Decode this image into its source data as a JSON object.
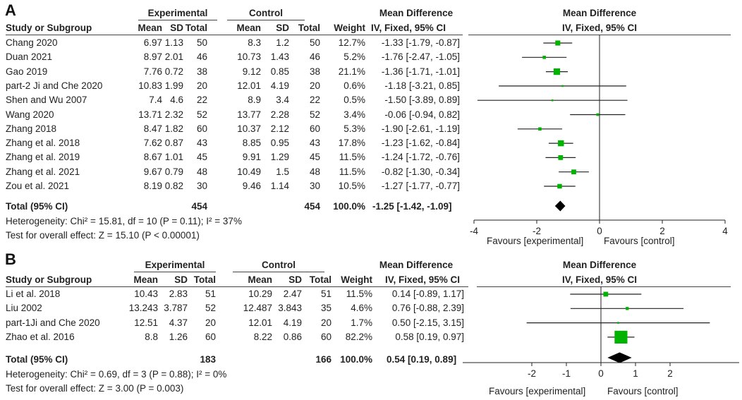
{
  "chart_data": [
    {
      "type": "forest",
      "panel": "A",
      "headers": {
        "experimental": "Experimental",
        "control": "Control",
        "mean_difference": "Mean Difference",
        "study": "Study or Subgroup",
        "mean": "Mean",
        "sd": "SD",
        "total": "Total",
        "weight": "Weight",
        "method": "IV, Fixed, 95% CI",
        "plot_title": "Mean Difference",
        "plot_method": "IV, Fixed, 95% CI"
      },
      "studies": [
        {
          "name": "Chang 2020",
          "e_mean": "6.97",
          "e_sd": "1.13",
          "e_total": "50",
          "c_mean": "8.3",
          "c_sd": "1.2",
          "c_total": "50",
          "weight": "12.7%",
          "ci_text": "-1.33 [-1.79, -0.87]",
          "md": -1.33,
          "lo": -1.79,
          "hi": -0.87,
          "w": 12.7
        },
        {
          "name": "Duan 2021",
          "e_mean": "8.97",
          "e_sd": "2.01",
          "e_total": "46",
          "c_mean": "10.73",
          "c_sd": "1.43",
          "c_total": "46",
          "weight": "5.2%",
          "ci_text": "-1.76 [-2.47, -1.05]",
          "md": -1.76,
          "lo": -2.47,
          "hi": -1.05,
          "w": 5.2
        },
        {
          "name": "Gao 2019",
          "e_mean": "7.76",
          "e_sd": "0.72",
          "e_total": "38",
          "c_mean": "9.12",
          "c_sd": "0.85",
          "c_total": "38",
          "weight": "21.1%",
          "ci_text": "-1.36 [-1.71, -1.01]",
          "md": -1.36,
          "lo": -1.71,
          "hi": -1.01,
          "w": 21.1
        },
        {
          "name": "part-2 Ji and Che 2020",
          "e_mean": "10.83",
          "e_sd": "1.99",
          "e_total": "20",
          "c_mean": "12.01",
          "c_sd": "4.19",
          "c_total": "20",
          "weight": "0.6%",
          "ci_text": "-1.18 [-3.21, 0.85]",
          "md": -1.18,
          "lo": -3.21,
          "hi": 0.85,
          "w": 0.6
        },
        {
          "name": "Shen and Wu 2007",
          "e_mean": "7.4",
          "e_sd": "4.6",
          "e_total": "22",
          "c_mean": "8.9",
          "c_sd": "3.4",
          "c_total": "22",
          "weight": "0.5%",
          "ci_text": "-1.50 [-3.89, 0.89]",
          "md": -1.5,
          "lo": -3.89,
          "hi": 0.89,
          "w": 0.5
        },
        {
          "name": "Wang 2020",
          "e_mean": "13.71",
          "e_sd": "2.32",
          "e_total": "52",
          "c_mean": "13.77",
          "c_sd": "2.28",
          "c_total": "52",
          "weight": "3.4%",
          "ci_text": "-0.06 [-0.94, 0.82]",
          "md": -0.06,
          "lo": -0.94,
          "hi": 0.82,
          "w": 3.4
        },
        {
          "name": "Zhang 2018",
          "e_mean": "8.47",
          "e_sd": "1.82",
          "e_total": "60",
          "c_mean": "10.37",
          "c_sd": "2.12",
          "c_total": "60",
          "weight": "5.3%",
          "ci_text": "-1.90 [-2.61, -1.19]",
          "md": -1.9,
          "lo": -2.61,
          "hi": -1.19,
          "w": 5.3
        },
        {
          "name": "Zhang et al. 2018",
          "e_mean": "7.62",
          "e_sd": "0.87",
          "e_total": "43",
          "c_mean": "8.85",
          "c_sd": "0.95",
          "c_total": "43",
          "weight": "17.8%",
          "ci_text": "-1.23 [-1.62, -0.84]",
          "md": -1.23,
          "lo": -1.62,
          "hi": -0.84,
          "w": 17.8
        },
        {
          "name": "Zhang et al. 2019",
          "e_mean": "8.67",
          "e_sd": "1.01",
          "e_total": "45",
          "c_mean": "9.91",
          "c_sd": "1.29",
          "c_total": "45",
          "weight": "11.5%",
          "ci_text": "-1.24 [-1.72, -0.76]",
          "md": -1.24,
          "lo": -1.72,
          "hi": -0.76,
          "w": 11.5
        },
        {
          "name": "Zhang et al. 2021",
          "e_mean": "9.67",
          "e_sd": "0.79",
          "e_total": "48",
          "c_mean": "10.49",
          "c_sd": "1.5",
          "c_total": "48",
          "weight": "11.5%",
          "ci_text": "-0.82 [-1.30, -0.34]",
          "md": -0.82,
          "lo": -1.3,
          "hi": -0.34,
          "w": 11.5
        },
        {
          "name": "Zou et al. 2021",
          "e_mean": "8.19",
          "e_sd": "0.82",
          "e_total": "30",
          "c_mean": "9.46",
          "c_sd": "1.14",
          "c_total": "30",
          "weight": "10.5%",
          "ci_text": "-1.27 [-1.77, -0.77]",
          "md": -1.27,
          "lo": -1.77,
          "hi": -0.77,
          "w": 10.5
        }
      ],
      "total": {
        "label": "Total (95% CI)",
        "e_total": "454",
        "c_total": "454",
        "weight": "100.0%",
        "ci_text": "-1.25 [-1.42, -1.09]",
        "md": -1.25,
        "lo": -1.42,
        "hi": -1.09
      },
      "heterogeneity": "Heterogeneity: Chi² = 15.81, df = 10 (P = 0.11); I² = 37%",
      "overall_effect": "Test for overall effect: Z = 15.10 (P < 0.00001)",
      "x_range": [
        -4,
        4
      ],
      "ticks": [
        -4,
        -2,
        0,
        2,
        4
      ],
      "tick_labels": [
        "-4",
        "-2",
        "0",
        "2",
        "4"
      ],
      "favours_left": "Favours [experimental]",
      "favours_right": "Favours [control]"
    },
    {
      "type": "forest",
      "panel": "B",
      "headers": {
        "experimental": "Experimental",
        "control": "Control",
        "mean_difference": "Mean Difference",
        "study": "Study or Subgroup",
        "mean": "Mean",
        "sd": "SD",
        "total": "Total",
        "weight": "Weight",
        "method": "IV, Fixed, 95% CI",
        "plot_title": "Mean Difference",
        "plot_method": "IV, Fixed, 95% CI"
      },
      "studies": [
        {
          "name": "Li et al. 2018",
          "e_mean": "10.43",
          "e_sd": "2.83",
          "e_total": "51",
          "c_mean": "10.29",
          "c_sd": "2.47",
          "c_total": "51",
          "weight": "11.5%",
          "ci_text": "0.14 [-0.89, 1.17]",
          "md": 0.14,
          "lo": -0.89,
          "hi": 1.17,
          "w": 11.5
        },
        {
          "name": "Liu 2002",
          "e_mean": "13.243",
          "e_sd": "3.787",
          "e_total": "52",
          "c_mean": "12.487",
          "c_sd": "3.843",
          "c_total": "35",
          "weight": "4.6%",
          "ci_text": "0.76 [-0.88, 2.39]",
          "md": 0.76,
          "lo": -0.88,
          "hi": 2.39,
          "w": 4.6
        },
        {
          "name": "part-1Ji and Che 2020",
          "e_mean": "12.51",
          "e_sd": "4.37",
          "e_total": "20",
          "c_mean": "12.01",
          "c_sd": "4.19",
          "c_total": "20",
          "weight": "1.7%",
          "ci_text": "0.50 [-2.15, 3.15]",
          "md": 0.5,
          "lo": -2.15,
          "hi": 3.15,
          "w": 1.7
        },
        {
          "name": "Zhao et al. 2016",
          "e_mean": "8.8",
          "e_sd": "1.26",
          "e_total": "60",
          "c_mean": "8.22",
          "c_sd": "0.86",
          "c_total": "60",
          "weight": "82.2%",
          "ci_text": "0.58 [0.19, 0.97]",
          "md": 0.58,
          "lo": 0.19,
          "hi": 0.97,
          "w": 82.2
        }
      ],
      "total": {
        "label": "Total (95% CI)",
        "e_total": "183",
        "c_total": "166",
        "weight": "100.0%",
        "ci_text": "0.54 [0.19, 0.89]",
        "md": 0.54,
        "lo": 0.19,
        "hi": 0.89
      },
      "heterogeneity": "Heterogeneity: Chi² = 0.69, df = 3 (P = 0.88); I² = 0%",
      "overall_effect": "Test for overall effect: Z = 3.00 (P = 0.003)",
      "x_range": [
        -4,
        4
      ],
      "ticks": [
        -2,
        -1,
        0,
        1,
        2
      ],
      "tick_labels": [
        "-2",
        "-1",
        "0",
        "1",
        "2"
      ],
      "favours_left": "Favours [experimental]",
      "favours_right": "Favours [control]"
    }
  ],
  "panel_labels": {
    "a": "A",
    "b": "B"
  },
  "colors": {
    "marker": "#00b300",
    "diamond": "#000000",
    "line": "#222222"
  }
}
